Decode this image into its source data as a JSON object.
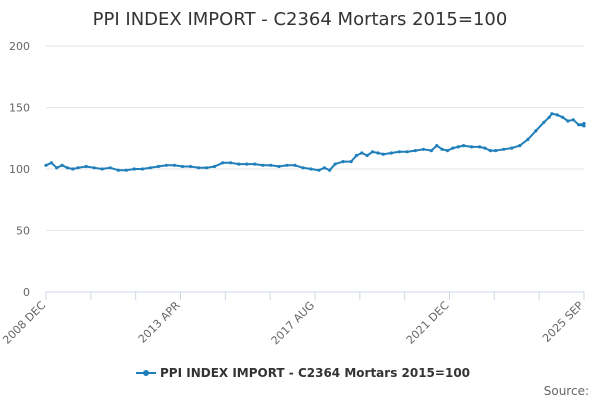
{
  "chart_data": {
    "type": "line",
    "title": "PPI INDEX IMPORT - C2364 Mortars 2015=100",
    "xlabel": "",
    "ylabel": "",
    "ylim": [
      0,
      200
    ],
    "y_ticks": [
      "0",
      "50",
      "100",
      "150",
      "200"
    ],
    "x_ticks": [
      "2008 DEC",
      "2013 APR",
      "2017 AUG",
      "2021 DEC",
      "2025 SEP"
    ],
    "x_range": [
      "2008-12",
      "2025-09"
    ],
    "grid": true,
    "legend_position": "bottom",
    "series": [
      {
        "name": "PPI INDEX IMPORT - C2364 Mortars 2015=100",
        "color": "#1f7fba",
        "points": [
          [
            "2008-12",
            103
          ],
          [
            "2009-02",
            105
          ],
          [
            "2009-04",
            101
          ],
          [
            "2009-06",
            103
          ],
          [
            "2009-08",
            101
          ],
          [
            "2009-10",
            100
          ],
          [
            "2009-12",
            101
          ],
          [
            "2010-03",
            102
          ],
          [
            "2010-06",
            101
          ],
          [
            "2010-09",
            100
          ],
          [
            "2010-12",
            101
          ],
          [
            "2011-03",
            99
          ],
          [
            "2011-06",
            99
          ],
          [
            "2011-09",
            100
          ],
          [
            "2011-12",
            100
          ],
          [
            "2012-03",
            101
          ],
          [
            "2012-06",
            102
          ],
          [
            "2012-09",
            103
          ],
          [
            "2012-12",
            103
          ],
          [
            "2013-03",
            102
          ],
          [
            "2013-06",
            102
          ],
          [
            "2013-09",
            101
          ],
          [
            "2013-12",
            101
          ],
          [
            "2014-03",
            102
          ],
          [
            "2014-06",
            105
          ],
          [
            "2014-09",
            105
          ],
          [
            "2014-12",
            104
          ],
          [
            "2015-03",
            104
          ],
          [
            "2015-06",
            104
          ],
          [
            "2015-09",
            103
          ],
          [
            "2015-12",
            103
          ],
          [
            "2016-03",
            102
          ],
          [
            "2016-06",
            103
          ],
          [
            "2016-09",
            103
          ],
          [
            "2016-12",
            101
          ],
          [
            "2017-03",
            100
          ],
          [
            "2017-06",
            99
          ],
          [
            "2017-08",
            101
          ],
          [
            "2017-10",
            99
          ],
          [
            "2017-12",
            104
          ],
          [
            "2018-03",
            106
          ],
          [
            "2018-06",
            106
          ],
          [
            "2018-08",
            111
          ],
          [
            "2018-10",
            113
          ],
          [
            "2018-12",
            111
          ],
          [
            "2019-02",
            114
          ],
          [
            "2019-04",
            113
          ],
          [
            "2019-06",
            112
          ],
          [
            "2019-09",
            113
          ],
          [
            "2019-12",
            114
          ],
          [
            "2020-03",
            114
          ],
          [
            "2020-06",
            115
          ],
          [
            "2020-09",
            116
          ],
          [
            "2020-12",
            115
          ],
          [
            "2021-02",
            119
          ],
          [
            "2021-04",
            116
          ],
          [
            "2021-06",
            115
          ],
          [
            "2021-08",
            117
          ],
          [
            "2021-10",
            118
          ],
          [
            "2021-12",
            119
          ],
          [
            "2022-03",
            118
          ],
          [
            "2022-06",
            118
          ],
          [
            "2022-08",
            117
          ],
          [
            "2022-10",
            115
          ],
          [
            "2022-12",
            115
          ],
          [
            "2023-03",
            116
          ],
          [
            "2023-06",
            117
          ],
          [
            "2023-09",
            119
          ],
          [
            "2023-12",
            124
          ],
          [
            "2024-03",
            131
          ],
          [
            "2024-06",
            138
          ],
          [
            "2024-08",
            142
          ],
          [
            "2024-09",
            145
          ],
          [
            "2024-11",
            144
          ],
          [
            "2025-01",
            142
          ],
          [
            "2025-03",
            139
          ],
          [
            "2025-05",
            140
          ],
          [
            "2025-07",
            136
          ],
          [
            "2025-08",
            136
          ],
          [
            "2025-09",
            135
          ],
          [
            "2025-09",
            137
          ]
        ]
      }
    ]
  },
  "legend": {
    "label": "PPI INDEX IMPORT - C2364 Mortars 2015=100"
  },
  "footer": {
    "source_label": "Source:"
  }
}
